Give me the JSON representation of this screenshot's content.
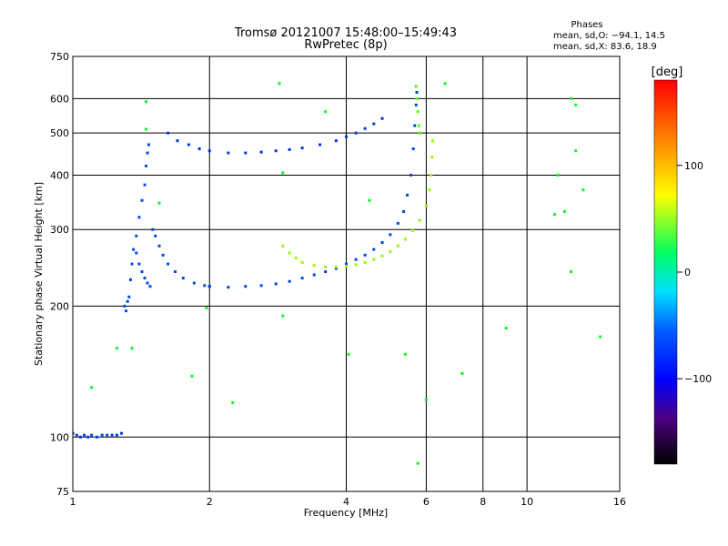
{
  "chart_data": {
    "type": "scatter",
    "title": "Tromsø 20121007 15:48:00–15:49:43",
    "subtitle": "RwPretec (8p)",
    "stats": {
      "title": "Phases",
      "line1": "mean, sd,O: −94.1, 14.5",
      "line2": "mean, sd,X:  83.6, 18.9"
    },
    "xlabel": "Frequency [MHz]",
    "ylabel": "Stationary phase Virtual Height [km]",
    "xscale": "log",
    "yscale": "log",
    "xlim": [
      1,
      16
    ],
    "ylim": [
      75,
      750
    ],
    "x_ticks": [
      {
        "value": 1,
        "label": "1"
      },
      {
        "value": 2,
        "label": "2"
      },
      {
        "value": 4,
        "label": "4"
      },
      {
        "value": 6,
        "label": "6"
      },
      {
        "value": 8,
        "label": "8"
      },
      {
        "value": 10,
        "label": "10"
      },
      {
        "value": 16,
        "label": "16"
      }
    ],
    "y_ticks": [
      {
        "value": 75,
        "label": "75"
      },
      {
        "value": 100,
        "label": "100"
      },
      {
        "value": 200,
        "label": "200"
      },
      {
        "value": 300,
        "label": "300"
      },
      {
        "value": 400,
        "label": "400"
      },
      {
        "value": 500,
        "label": "500"
      },
      {
        "value": 600,
        "label": "600"
      },
      {
        "value": 750,
        "label": "750"
      }
    ],
    "grid": true,
    "colorbar": {
      "label": "[deg]",
      "range": [
        -180,
        180
      ],
      "ticks": [
        {
          "value": 100,
          "label": "100"
        },
        {
          "value": 0,
          "label": "0"
        },
        {
          "value": -100,
          "label": "−100"
        }
      ]
    },
    "series": [
      {
        "id": "o-low",
        "phase": -105,
        "points": [
          [
            1.0,
            102
          ],
          [
            1.02,
            101
          ],
          [
            1.04,
            100
          ],
          [
            1.06,
            101
          ],
          [
            1.08,
            100
          ],
          [
            1.1,
            101
          ],
          [
            1.13,
            100
          ],
          [
            1.16,
            101
          ],
          [
            1.19,
            101
          ],
          [
            1.22,
            101
          ],
          [
            1.25,
            101
          ],
          [
            1.28,
            102
          ]
        ]
      },
      {
        "id": "o-e",
        "phase": -100,
        "points": [
          [
            1.3,
            200
          ],
          [
            1.31,
            195
          ],
          [
            1.32,
            205
          ],
          [
            1.33,
            210
          ],
          [
            1.34,
            230
          ],
          [
            1.35,
            250
          ],
          [
            1.36,
            270
          ],
          [
            1.38,
            290
          ],
          [
            1.4,
            320
          ],
          [
            1.42,
            350
          ],
          [
            1.44,
            380
          ],
          [
            1.45,
            420
          ],
          [
            1.46,
            450
          ],
          [
            1.47,
            470
          ]
        ]
      },
      {
        "id": "o-e-down",
        "phase": -98,
        "points": [
          [
            1.38,
            265
          ],
          [
            1.4,
            250
          ],
          [
            1.42,
            240
          ],
          [
            1.44,
            232
          ],
          [
            1.46,
            226
          ],
          [
            1.48,
            222
          ]
        ]
      },
      {
        "id": "o-e-cusp",
        "phase": -100,
        "points": [
          [
            1.5,
            300
          ],
          [
            1.52,
            290
          ],
          [
            1.55,
            275
          ],
          [
            1.58,
            262
          ],
          [
            1.62,
            250
          ],
          [
            1.68,
            240
          ],
          [
            1.75,
            232
          ],
          [
            1.85,
            226
          ],
          [
            1.95,
            223
          ],
          [
            2.0,
            222
          ]
        ]
      },
      {
        "id": "o-f1",
        "phase": -102,
        "points": [
          [
            2.0,
            222
          ],
          [
            2.2,
            221
          ],
          [
            2.4,
            222
          ],
          [
            2.6,
            223
          ],
          [
            2.8,
            225
          ],
          [
            3.0,
            228
          ],
          [
            3.2,
            232
          ],
          [
            3.4,
            236
          ],
          [
            3.6,
            240
          ],
          [
            3.8,
            244
          ],
          [
            4.0,
            250
          ],
          [
            4.2,
            256
          ],
          [
            4.4,
            262
          ],
          [
            4.6,
            270
          ],
          [
            4.8,
            280
          ],
          [
            5.0,
            292
          ],
          [
            5.2,
            310
          ],
          [
            5.35,
            330
          ],
          [
            5.45,
            360
          ],
          [
            5.55,
            400
          ],
          [
            5.62,
            460
          ],
          [
            5.66,
            520
          ],
          [
            5.7,
            580
          ],
          [
            5.72,
            620
          ]
        ]
      },
      {
        "id": "o-f2",
        "phase": -110,
        "points": [
          [
            1.62,
            500
          ],
          [
            1.7,
            480
          ],
          [
            1.8,
            470
          ],
          [
            1.9,
            460
          ],
          [
            2.0,
            455
          ],
          [
            2.2,
            450
          ],
          [
            2.4,
            450
          ],
          [
            2.6,
            452
          ],
          [
            2.8,
            455
          ],
          [
            3.0,
            458
          ],
          [
            3.2,
            462
          ],
          [
            3.5,
            470
          ],
          [
            3.8,
            480
          ],
          [
            4.0,
            490
          ],
          [
            4.2,
            500
          ],
          [
            4.4,
            512
          ],
          [
            4.6,
            525
          ],
          [
            4.8,
            540
          ]
        ]
      },
      {
        "id": "x-f",
        "phase": 85,
        "points": [
          [
            2.9,
            275
          ],
          [
            3.0,
            265
          ],
          [
            3.1,
            258
          ],
          [
            3.2,
            252
          ],
          [
            3.4,
            248
          ],
          [
            3.6,
            246
          ],
          [
            3.8,
            246
          ],
          [
            4.0,
            247
          ],
          [
            4.2,
            249
          ],
          [
            4.4,
            252
          ],
          [
            4.6,
            256
          ],
          [
            4.8,
            261
          ],
          [
            5.0,
            267
          ],
          [
            5.2,
            275
          ],
          [
            5.4,
            285
          ],
          [
            5.6,
            298
          ],
          [
            5.8,
            315
          ],
          [
            6.0,
            340
          ],
          [
            6.1,
            370
          ],
          [
            6.15,
            400
          ],
          [
            6.18,
            440
          ],
          [
            6.2,
            480
          ]
        ]
      },
      {
        "id": "x-f1",
        "phase": 70,
        "points": [
          [
            5.7,
            640
          ],
          [
            5.72,
            600
          ],
          [
            5.75,
            560
          ],
          [
            5.78,
            520
          ],
          [
            5.8,
            500
          ]
        ]
      },
      {
        "id": "noise",
        "phase": 40,
        "points": [
          [
            1.1,
            130
          ],
          [
            1.25,
            160
          ],
          [
            1.35,
            160
          ],
          [
            1.45,
            510
          ],
          [
            1.45,
            590
          ],
          [
            1.55,
            345
          ],
          [
            1.83,
            138
          ],
          [
            1.97,
            198
          ],
          [
            2.25,
            120
          ],
          [
            2.85,
            650
          ],
          [
            2.9,
            190
          ],
          [
            2.9,
            405
          ],
          [
            3.6,
            560
          ],
          [
            4.05,
            155
          ],
          [
            4.5,
            350
          ],
          [
            5.4,
            155
          ],
          [
            5.75,
            87
          ],
          [
            6.0,
            122
          ],
          [
            6.6,
            650
          ],
          [
            7.2,
            140
          ],
          [
            9.0,
            178
          ],
          [
            11.5,
            325
          ],
          [
            11.7,
            400
          ],
          [
            12.1,
            330
          ],
          [
            12.5,
            600
          ],
          [
            12.5,
            240
          ],
          [
            12.8,
            580
          ],
          [
            12.8,
            455
          ],
          [
            14.5,
            170
          ],
          [
            13.3,
            370
          ]
        ]
      }
    ]
  }
}
